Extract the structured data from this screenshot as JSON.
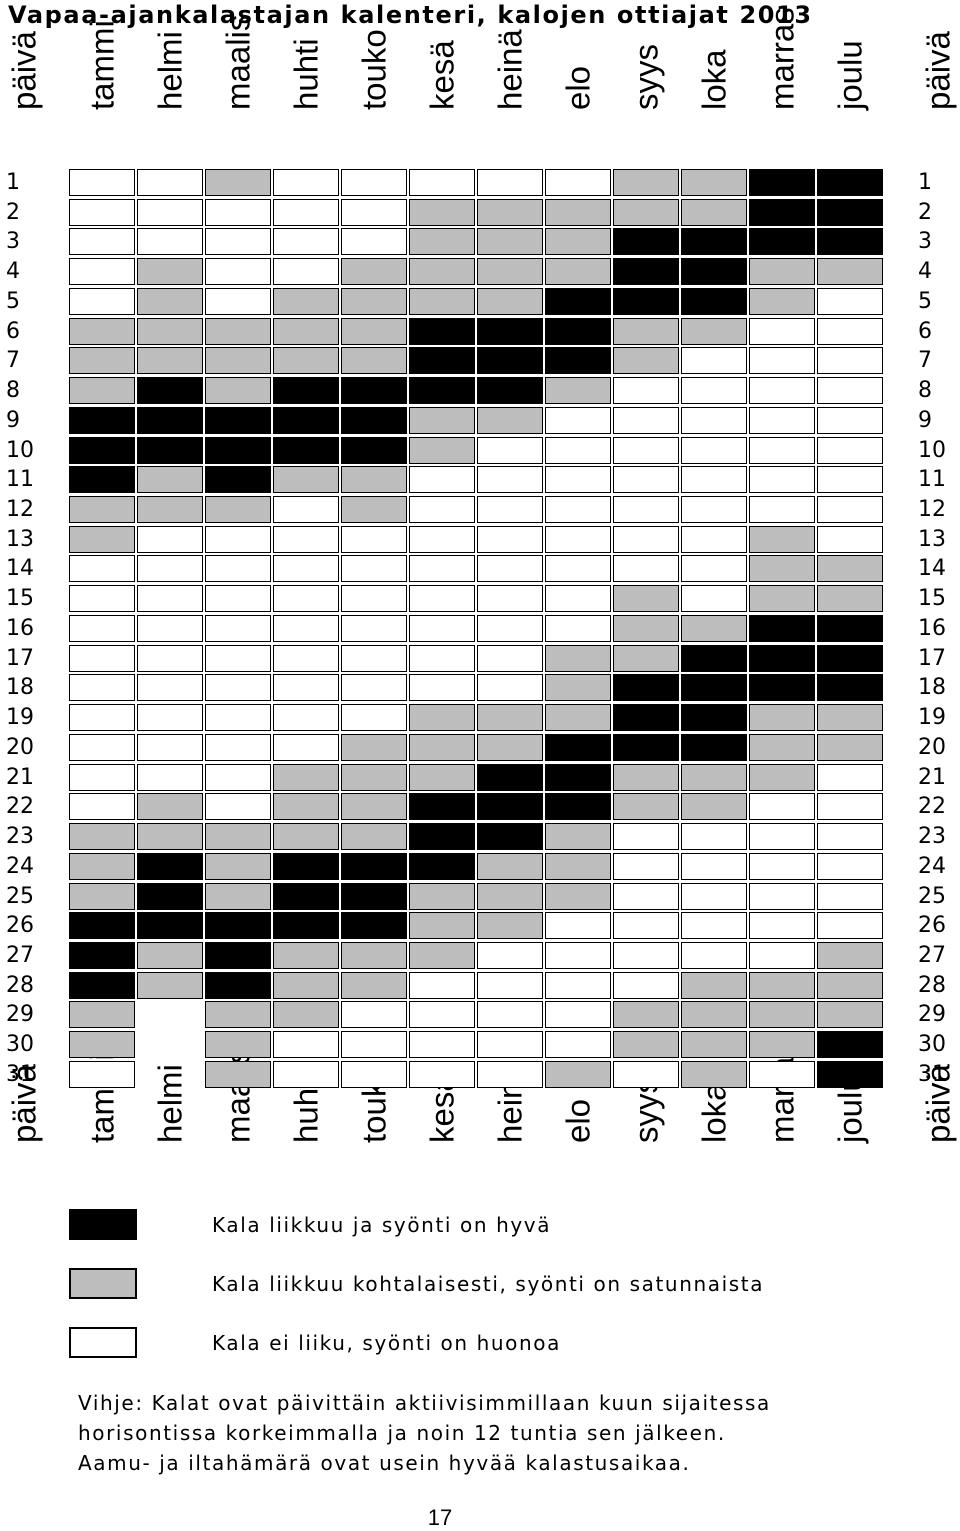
{
  "title": "Vapaa-ajankalastajan kalenteri, kalojen ottiajat 2013",
  "day_header": "päivä",
  "months": [
    "tammi",
    "helmi",
    "maalis",
    "huhti",
    "touko",
    "kesä",
    "heinä",
    "elo",
    "syys",
    "loka",
    "marras",
    "joulu"
  ],
  "days": [
    "1",
    "2",
    "3",
    "4",
    "5",
    "6",
    "7",
    "8",
    "9",
    "10",
    "11",
    "12",
    "13",
    "14",
    "15",
    "16",
    "17",
    "18",
    "19",
    "20",
    "21",
    "22",
    "23",
    "24",
    "25",
    "26",
    "27",
    "28",
    "29",
    "30",
    "31"
  ],
  "colors": {
    "hyva": "#000000",
    "kohtalainen": "#bdbdbd",
    "huono": "#ffffff"
  },
  "grid": [
    "WWGWWWWWGGBB",
    "WWWWWGGGGGBB",
    "WWWWWGGGBBBB",
    "WGWWGGGGBBGG",
    "WGWGGGGBBBGW",
    "GGGGGBBBGGWW",
    "GGGGGBBBGWWW",
    "GBGBBBBGWWWW",
    "BBBBBGGWWWWW",
    "BBBBBGWWWWWW",
    "BGBGGWWWWWWW",
    "GGGWGWWWWWWW",
    "GWWWWWWWWWGW",
    "WWWWWWWWWWGG",
    "WWWWWWWWGWGG",
    "WWWWWWWWGGBB",
    "WWWWWWWGGBBB",
    "WWWWWWWGBBBB",
    "WWWWWGGGBBGG",
    "WWWWGGGBBBGG",
    "WWWGGGBBGGGW",
    "WGWGGBBBGGWW",
    "GGGGGBBGWWWW",
    "GBGBBBGGWWWW",
    "GBGBBGGGWWWW",
    "BBBBBGGWWWWW",
    "BGBGGGWWWWWG",
    "BGBGGWWWWGGG",
    "G-GGWWWWGGGG",
    "G-GWWWWWGGGB",
    "W-GWWWWGWGWB"
  ],
  "legend": [
    {
      "key": "hyva",
      "text": "Kala liikkuu ja syönti on hyvä"
    },
    {
      "key": "kohtalainen",
      "text": "Kala liikkuu kohtalaisesti, syönti on satunnaista"
    },
    {
      "key": "huono",
      "text": "Kala ei liiku, syönti on huonoa"
    }
  ],
  "hint_lines": [
    "Vihje: Kalat ovat päivittäin aktiivisimmillaan kuun sijaitessa",
    "horisontissa korkeimmalla ja noin 12 tuntia sen jälkeen.",
    "Aamu- ja iltahämärä ovat usein hyvää kalastusaikaa."
  ],
  "page_number": "17"
}
